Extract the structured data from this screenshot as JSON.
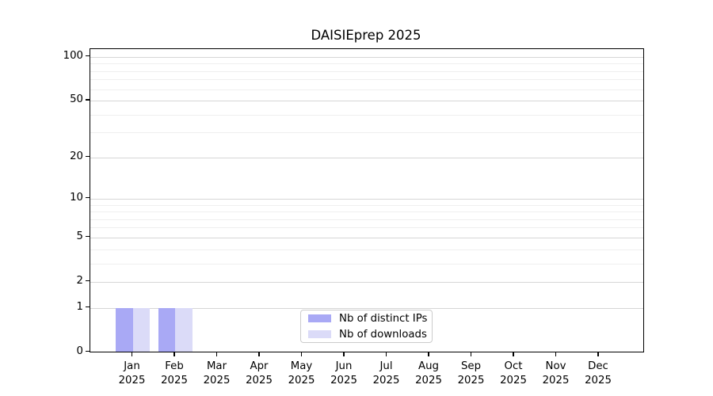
{
  "chart_data": {
    "type": "bar",
    "title": "DAISIEprep 2025",
    "x_months": [
      "Jan",
      "Feb",
      "Mar",
      "Apr",
      "May",
      "Jun",
      "Jul",
      "Aug",
      "Sep",
      "Oct",
      "Nov",
      "Dec"
    ],
    "x_year": "2025",
    "series": [
      {
        "name": "Nb of distinct IPs",
        "color": "#a9a9f5",
        "values": [
          1,
          1,
          0,
          0,
          0,
          0,
          0,
          0,
          0,
          0,
          0,
          0
        ]
      },
      {
        "name": "Nb of downloads",
        "color": "#dbdbf8",
        "values": [
          1,
          1,
          0,
          0,
          0,
          0,
          0,
          0,
          0,
          0,
          0,
          0
        ]
      }
    ],
    "y_scale": "log1p",
    "y_ticks": [
      0,
      1,
      2,
      5,
      10,
      20,
      50,
      100
    ],
    "y_minor_ticks": [
      3,
      4,
      6,
      7,
      8,
      9,
      30,
      40,
      60,
      70,
      80,
      90
    ],
    "ylim": [
      0,
      113
    ],
    "grid": true,
    "legend_position": "lower center inside",
    "colors": {
      "grid_major": "#d6d6d6",
      "grid_minor": "#efefef",
      "axis": "#000000"
    }
  }
}
